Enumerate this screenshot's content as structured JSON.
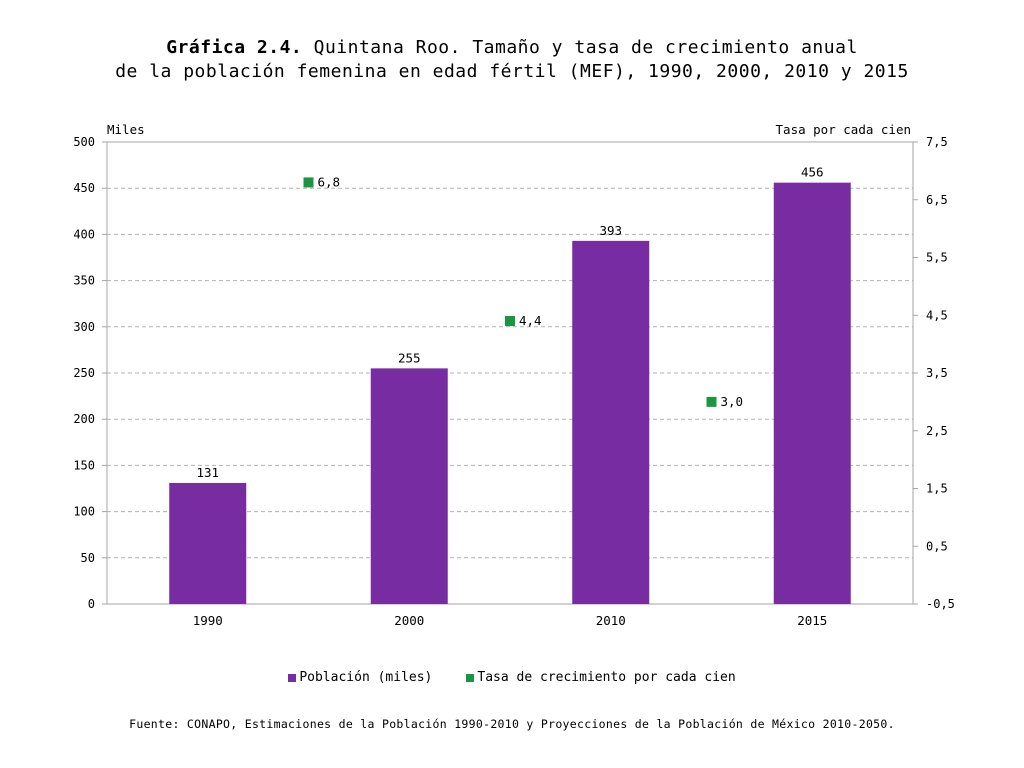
{
  "title": {
    "prefix": "Gráfica 2.4.",
    "line1": " Quintana Roo. Tamaño y tasa de crecimiento anual",
    "line2": "de la población femenina en edad fértil (MEF), 1990, 2000, 2010 y 2015"
  },
  "colors": {
    "bar": "#772ca1",
    "marker": "#1a9641",
    "grid": "#b3b3b3",
    "axis": "#a6a6a6"
  },
  "chart_data": {
    "type": "bar",
    "categories": [
      "1990",
      "2000",
      "2010",
      "2015"
    ],
    "series": [
      {
        "name": "Población (miles)",
        "axis": "left",
        "values": [
          131,
          255,
          393,
          456
        ],
        "labels": [
          "131",
          "255",
          "393",
          "456"
        ]
      },
      {
        "name": "Tasa de crecimiento por cada cien",
        "axis": "right",
        "type": "scatter",
        "positions": [
          "1990-2000",
          "2000-2010",
          "2010-2015"
        ],
        "values": [
          6.8,
          4.4,
          3.0
        ],
        "labels": [
          "6,8",
          "4,4",
          "3,0"
        ]
      }
    ],
    "ylabel_left": "Miles",
    "ylabel_right": "Tasa por cada cien",
    "ylim_left": [
      0,
      500
    ],
    "yticks_left": [
      "0",
      "50",
      "100",
      "150",
      "200",
      "250",
      "300",
      "350",
      "400",
      "450",
      "500"
    ],
    "ylim_right": [
      -0.5,
      7.5
    ],
    "yticks_right": [
      "-0,5",
      "0,5",
      "1,5",
      "2,5",
      "3,5",
      "4,5",
      "5,5",
      "6,5",
      "7,5"
    ],
    "grid": true,
    "legend_position": "bottom"
  },
  "legend": {
    "item1": "Población (miles)",
    "item2": "Tasa de crecimiento por cada cien"
  },
  "source": "Fuente: CONAPO, Estimaciones de la Población 1990-2010 y Proyecciones de la Población de México 2010-2050."
}
